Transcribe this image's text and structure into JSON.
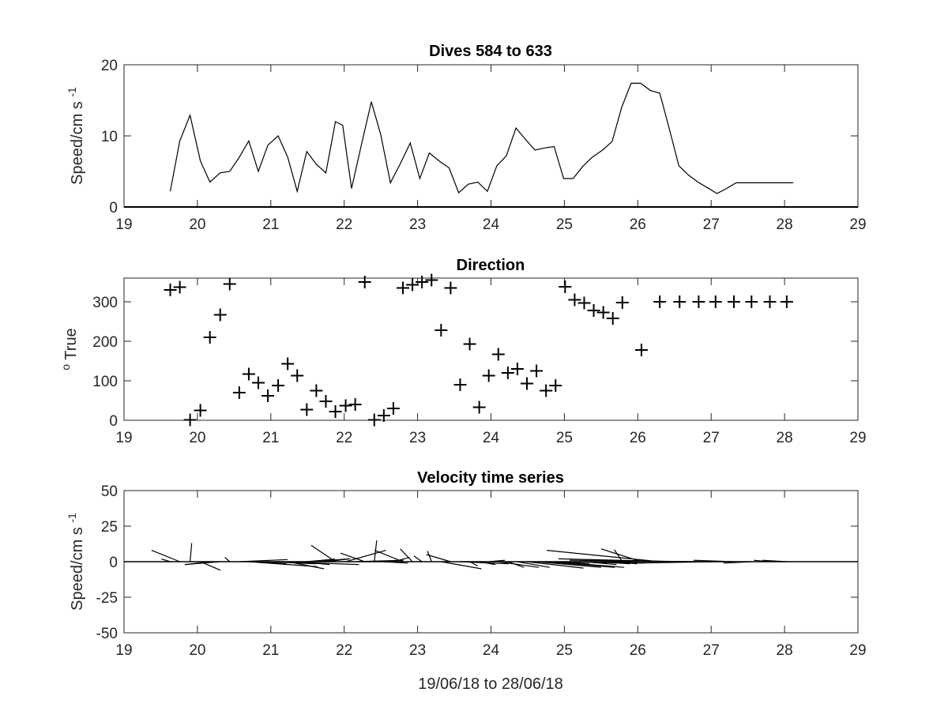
{
  "chart_data": [
    {
      "type": "line",
      "title": "Dives 584 to 633",
      "xlabel": "",
      "ylabel": "Speed/cm s",
      "ylabel_superscript": "-1",
      "xlim": [
        19,
        29
      ],
      "ylim": [
        0,
        20
      ],
      "xticks": [
        "19",
        "20",
        "21",
        "22",
        "23",
        "24",
        "25",
        "26",
        "27",
        "28",
        "29"
      ],
      "yticks": [
        "0",
        "10",
        "20"
      ],
      "grid": false,
      "series": [
        {
          "x": [
            19.63,
            19.76,
            19.9,
            20.04,
            20.17,
            20.31,
            20.44,
            20.57,
            20.7,
            20.83,
            20.96,
            21.1,
            21.23,
            21.36,
            21.49,
            21.62,
            21.75,
            21.88,
            21.98,
            22.1,
            22.24,
            22.37,
            22.5,
            22.63,
            22.76,
            22.9,
            23.03,
            23.16,
            23.29,
            23.43,
            23.56,
            23.69,
            23.82,
            23.95,
            24.08,
            24.21,
            24.34,
            24.47,
            24.6,
            24.73,
            24.86,
            24.99,
            25.12,
            25.25,
            25.38,
            25.52,
            25.65,
            25.78,
            25.91,
            26.04,
            26.17,
            26.3,
            26.43,
            26.56,
            26.69,
            26.82,
            26.95,
            27.08,
            27.21,
            27.34,
            27.47,
            27.6,
            27.73,
            27.86,
            27.99,
            28.12
          ],
          "y": [
            2.2,
            9.3,
            12.9,
            6.5,
            3.5,
            4.8,
            5.0,
            7.0,
            9.3,
            5.0,
            8.7,
            10.0,
            7.0,
            2.2,
            7.8,
            6.0,
            4.8,
            12.0,
            11.5,
            2.6,
            9.0,
            14.8,
            10.1,
            3.4,
            6.0,
            9.0,
            4.0,
            7.6,
            6.5,
            5.5,
            2.0,
            3.2,
            3.5,
            2.2,
            5.8,
            7.2,
            11.1,
            9.5,
            8.0,
            8.3,
            8.5,
            4.0,
            4.0,
            5.7,
            7.0,
            8.0,
            9.2,
            14.0,
            17.4,
            17.4,
            16.4,
            16.0,
            11.0,
            5.8,
            4.5,
            3.5,
            2.7,
            1.9,
            2.6,
            3.4,
            3.4,
            3.4,
            3.4,
            3.4,
            3.4,
            3.4
          ]
        }
      ]
    },
    {
      "type": "scatter",
      "title": "Direction",
      "xlabel": "",
      "ylabel": "True",
      "ylabel_superscript": "o",
      "xlim": [
        19,
        29
      ],
      "ylim": [
        0,
        360
      ],
      "xticks": [
        "19",
        "20",
        "21",
        "22",
        "23",
        "24",
        "25",
        "26",
        "27",
        "28",
        "29"
      ],
      "yticks": [
        "0",
        "100",
        "200",
        "300"
      ],
      "grid": false,
      "marker": "+",
      "series": [
        {
          "x": [
            19.63,
            19.76,
            19.9,
            20.04,
            20.17,
            20.31,
            20.44,
            20.57,
            20.7,
            20.83,
            20.96,
            21.1,
            21.23,
            21.36,
            21.49,
            21.62,
            21.75,
            21.88,
            22.02,
            22.15,
            22.28,
            22.41,
            22.54,
            22.67,
            22.8,
            22.93,
            23.06,
            23.19,
            23.32,
            23.45,
            23.58,
            23.71,
            23.84,
            23.97,
            24.1,
            24.23,
            24.36,
            24.49,
            24.62,
            24.75,
            24.88,
            25.01,
            25.14,
            25.27,
            25.4,
            25.53,
            25.66,
            25.79,
            26.05,
            26.3,
            26.57,
            26.83,
            27.06,
            27.31,
            27.55,
            27.8,
            28.03
          ],
          "y": [
            330,
            337,
            1,
            25,
            210,
            267,
            345,
            70,
            117,
            95,
            62,
            88,
            143,
            113,
            27,
            75,
            48,
            22,
            37,
            40,
            350,
            1,
            12,
            30,
            335,
            343,
            350,
            355,
            228,
            335,
            90,
            193,
            33,
            113,
            167,
            120,
            130,
            93,
            125,
            75,
            88,
            338,
            305,
            297,
            278,
            273,
            258,
            298,
            178,
            300,
            300,
            300,
            300,
            300,
            300,
            300,
            300
          ]
        }
      ]
    },
    {
      "type": "line",
      "subtype": "stick",
      "title": "Velocity time series",
      "xlabel": "19/06/18 to 28/06/18",
      "ylabel": "Speed/cm s",
      "ylabel_superscript": "-1",
      "xlim": [
        19,
        29
      ],
      "ylim": [
        -50,
        50
      ],
      "xticks": [
        "19",
        "20",
        "21",
        "22",
        "23",
        "24",
        "25",
        "26",
        "27",
        "28",
        "29"
      ],
      "yticks": [
        "-50",
        "-25",
        "0",
        "25",
        "50"
      ],
      "grid": false,
      "series": [
        {
          "x": [
            19.63,
            19.76,
            19.9,
            20.04,
            20.17,
            20.31,
            20.44,
            20.57,
            20.7,
            20.83,
            20.96,
            21.1,
            21.23,
            21.36,
            21.49,
            21.62,
            21.75,
            21.88,
            22.02,
            22.15,
            22.28,
            22.41,
            22.54,
            22.67,
            22.8,
            22.93,
            23.06,
            23.19,
            23.32,
            23.45,
            23.58,
            23.71,
            23.84,
            23.97,
            24.1,
            24.23,
            24.36,
            24.49,
            24.62,
            24.75,
            24.88,
            25.01,
            25.14,
            25.27,
            25.4,
            25.53,
            25.66,
            25.79,
            26.05,
            26.3,
            26.57,
            26.83,
            27.06,
            27.31,
            27.55,
            27.8,
            28.03
          ],
          "u": [
            -1.1,
            -3.5,
            0.2,
            2.5,
            -3.0,
            -4.4,
            -0.6,
            6.0,
            8.5,
            3.5,
            6.0,
            10.0,
            4.5,
            4.0,
            3.5,
            4.0,
            3.0,
            -3.0,
            5.0,
            6.0,
            -3.0,
            0.3,
            3.0,
            2.0,
            -3.5,
            -1.5,
            -1.0,
            -0.5,
            5.0,
            -3.0,
            6.0,
            1.0,
            2.0,
            2.0,
            5.0,
            2.0,
            4.0,
            7.0,
            8.0,
            8.5,
            8.5,
            3.0,
            4.0,
            4.0,
            4.5,
            5.0,
            3.0,
            -1.0,
            -5.0,
            -14.0,
            -15.0,
            -16.0,
            -10.0,
            -5.0,
            -3.5,
            -2.0,
            -3.0
          ],
          "v": [
            1.9,
            8.0,
            13.0,
            -6.0,
            -2.0,
            -2.0,
            3.0,
            1.5,
            -3.5,
            -1.5,
            -1.5,
            -2.0,
            -5.0,
            -2.0,
            1.8,
            2.0,
            2.0,
            11.5,
            8.0,
            1.0,
            6.0,
            15.0,
            -1.0,
            3.0,
            8.0,
            9.0,
            4.0,
            7.5,
            -5.0,
            5.0,
            -1.5,
            -3.0,
            -2.0,
            1.0,
            -4.0,
            -4.0,
            -4.0,
            -4.5,
            -4.0,
            -4.0,
            -4.0,
            -1.5,
            -1.0,
            -2.0,
            -1.5,
            -1.0,
            -1.5,
            8.5,
            9.0,
            8.0,
            2.0,
            1.0,
            -1.0,
            1.0,
            -1.0,
            1.0,
            1.0
          ]
        }
      ]
    }
  ]
}
